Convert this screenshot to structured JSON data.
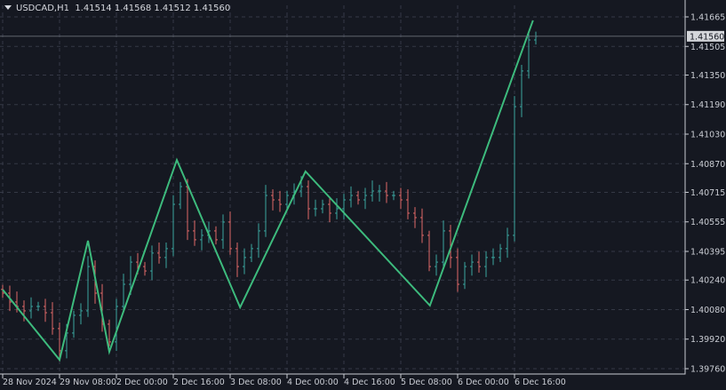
{
  "header": {
    "symbol": "USDCAD,H1",
    "ohlc": "1.41514 1.41568 1.41512 1.41560"
  },
  "colors": {
    "background": "#151821",
    "grid": "#353946",
    "bull_bar": "#3aa6a0",
    "bear_bar": "#e06868",
    "zigzag": "#3dbb7d",
    "axis": "#c9ccd3",
    "price_label_bg": "#d4d6da"
  },
  "chart_data": {
    "type": "ohlc-bar",
    "title": "USDCAD,H1",
    "current_price": 1.4156,
    "current_price_label": "1.41560",
    "ylim": [
      1.3976,
      1.41665
    ],
    "grid": true,
    "y_ticks": [
      "1.41665",
      "1.41505",
      "1.41350",
      "1.41190",
      "1.41030",
      "1.40870",
      "1.40715",
      "1.40555",
      "1.40395",
      "1.40240",
      "1.40080",
      "1.39920",
      "1.39760"
    ],
    "x_ticks": [
      "28 Nov 2024",
      "29 Nov 08:00",
      "2 Dec 00:00",
      "2 Dec 16:00",
      "3 Dec 08:00",
      "4 Dec 00:00",
      "4 Dec 16:00",
      "5 Dec 08:00",
      "6 Dec 00:00",
      "6 Dec 16:00"
    ],
    "closes": [
      1.40169,
      1.40121,
      1.40097,
      1.40073,
      1.40097,
      1.40097,
      1.40063,
      1.39977,
      1.39857,
      1.39953,
      1.40049,
      1.40073,
      1.40313,
      1.40169,
      1.40001,
      1.39905,
      1.40097,
      1.40217,
      1.40337,
      1.40313,
      1.40289,
      1.40386,
      1.40362,
      1.4041,
      1.4065,
      1.40746,
      1.40506,
      1.40458,
      1.40482,
      1.40506,
      1.40458,
      1.40554,
      1.4041,
      1.40313,
      1.40362,
      1.4041,
      1.40506,
      1.40698,
      1.40674,
      1.4065,
      1.40698,
      1.40722,
      1.40746,
      1.40626,
      1.40626,
      1.4065,
      1.40602,
      1.40626,
      1.40674,
      1.40698,
      1.40674,
      1.40698,
      1.40722,
      1.40722,
      1.40698,
      1.40698,
      1.40674,
      1.40602,
      1.40578,
      1.40482,
      1.40313,
      1.40337,
      1.40506,
      1.40362,
      1.40217,
      1.40313,
      1.40337,
      1.40313,
      1.40362,
      1.40362,
      1.4041,
      1.40482,
      1.41179,
      1.41372,
      1.4154,
      1.4156
    ],
    "zigzag": [
      {
        "bar": 0,
        "price": 1.40188
      },
      {
        "bar": 8,
        "price": 1.39808
      },
      {
        "bar": 12,
        "price": 1.40453
      },
      {
        "bar": 15,
        "price": 1.39852
      },
      {
        "bar": 24.5,
        "price": 1.4089
      },
      {
        "bar": 33.4,
        "price": 1.40092
      },
      {
        "bar": 42.6,
        "price": 1.40828
      },
      {
        "bar": 60.1,
        "price": 1.40102
      },
      {
        "bar": 74.6,
        "price": 1.41646
      }
    ]
  }
}
